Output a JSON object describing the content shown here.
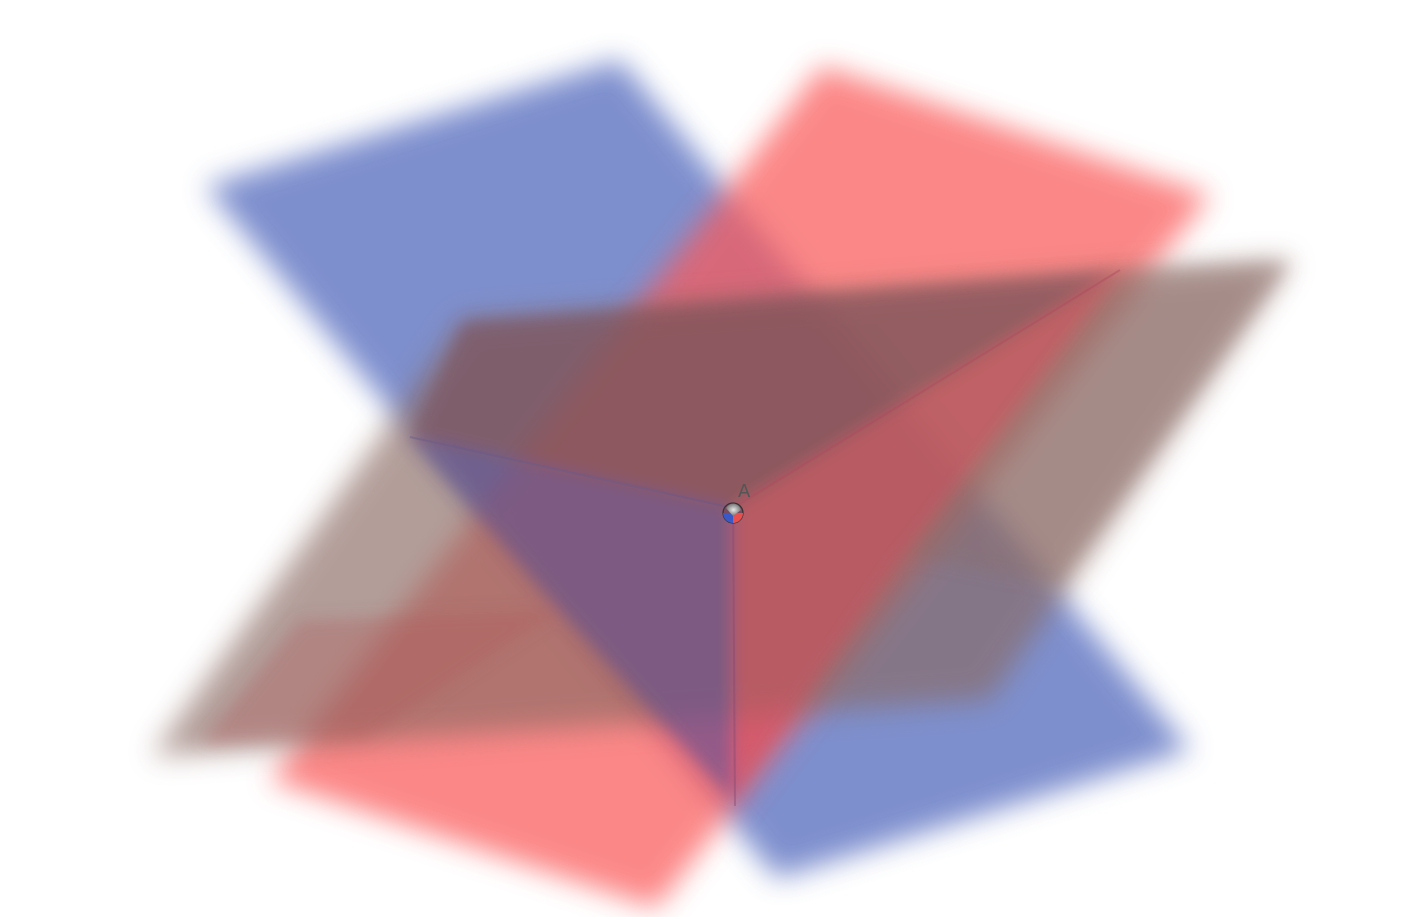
{
  "scene": {
    "type": "3d-planes-intersection",
    "planes": [
      {
        "name": "plane-blue",
        "color": "#5a6fc0"
      },
      {
        "name": "plane-red",
        "color": "#fa5a5a"
      },
      {
        "name": "plane-brown",
        "color": "#8a6a64"
      }
    ],
    "point": {
      "label": "A",
      "fill_colors": [
        "#3a58c8",
        "#e85050",
        "#a0a0a0"
      ],
      "label_color": "#555555"
    }
  }
}
